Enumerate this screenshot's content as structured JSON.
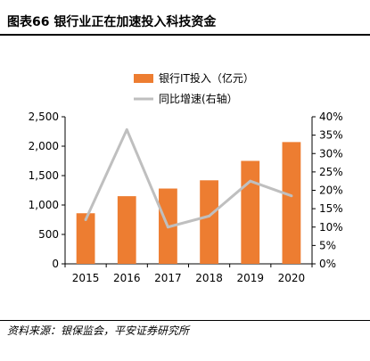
{
  "figure": {
    "title": "图表66   银行业正在加速投入科技资金",
    "source": "资料来源：银保监会，平安证券研究所"
  },
  "colors": {
    "bar": "#ED7D31",
    "line": "#BFBFBF"
  },
  "chart_data": {
    "type": "bar",
    "categories": [
      "2015",
      "2016",
      "2017",
      "2018",
      "2019",
      "2020"
    ],
    "series": [
      {
        "name": "银行IT投入（亿元）",
        "type": "bar",
        "axis": "left",
        "values": [
          860,
          1150,
          1280,
          1420,
          1750,
          2070
        ]
      },
      {
        "name": "同比增速(右轴）",
        "type": "line",
        "axis": "right",
        "values": [
          0.12,
          0.365,
          0.1,
          0.13,
          0.225,
          0.185
        ]
      }
    ],
    "left_axis": {
      "ylim": [
        0,
        2500
      ],
      "ticks": [
        "0",
        "500",
        "1,000",
        "1,500",
        "2,000",
        "2,500"
      ]
    },
    "right_axis": {
      "ylim": [
        0,
        0.4
      ],
      "ticks": [
        "0%",
        "5%",
        "10%",
        "15%",
        "20%",
        "25%",
        "30%",
        "35%",
        "40%"
      ]
    },
    "grid": false,
    "legend_position": "top"
  }
}
